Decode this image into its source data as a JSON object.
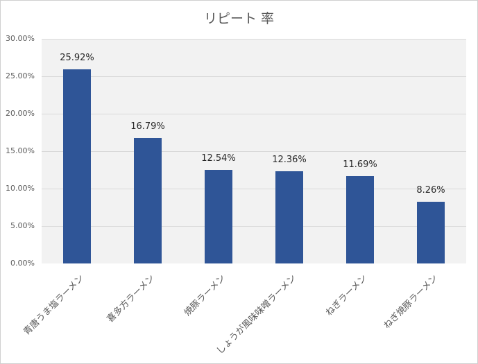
{
  "chart_data": {
    "type": "bar",
    "title": "リピート 率",
    "xlabel": "",
    "ylabel": "",
    "ylim": [
      0,
      0.3
    ],
    "yticks": [
      "0.00%",
      "5.00%",
      "10.00%",
      "15.00%",
      "20.00%",
      "25.00%",
      "30.00%"
    ],
    "grid": true,
    "legend": null,
    "categories": [
      "青唐うま塩ラーメン",
      "喜多方ラーメン",
      "焼豚ラーメン",
      "しょうが風味味噌ラーメン",
      "ねぎラーメン",
      "ねぎ焼豚ラーメン"
    ],
    "values": [
      25.92,
      16.79,
      12.54,
      12.36,
      11.69,
      8.26
    ],
    "value_labels": [
      "25.92%",
      "16.79%",
      "12.54%",
      "12.36%",
      "11.69%",
      "8.26%"
    ],
    "bar_color": "#2f5597",
    "plot_bg": "#f2f2f2"
  }
}
